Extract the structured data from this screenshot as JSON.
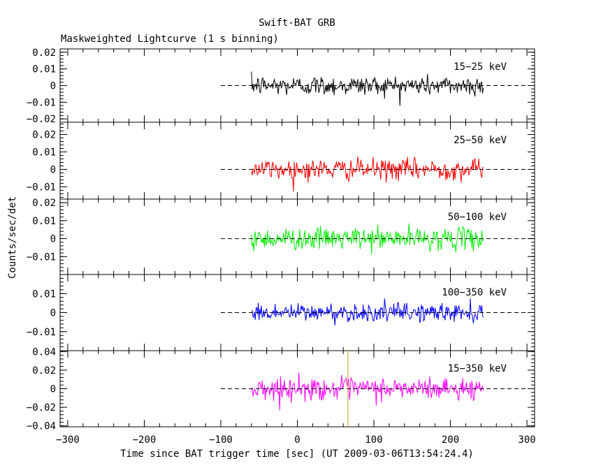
{
  "chart_data": {
    "type": "line",
    "title": "Swift-BAT GRB",
    "subtitle": "Maskweighted Lightcurve (1 s binning)",
    "xlabel": "Time since BAT trigger time [sec] (UT 2009-03-06T13:54:24.4)",
    "ylabel": "Counts/sec/det",
    "xlim": [
      -310,
      310
    ],
    "x_ticks": [
      -300,
      -200,
      -100,
      0,
      100,
      200,
      300
    ],
    "data_range": [
      -60,
      243
    ],
    "marker_line_x": 66,
    "marker_line_color": "#d4a020",
    "grid": false,
    "panels": [
      {
        "label": "15−25 keV",
        "color": "#000000",
        "ylim": [
          -0.022,
          0.022
        ],
        "yticks": [
          -0.02,
          -0.01,
          0,
          0.01,
          0.02
        ],
        "ytick_labels": [
          "−0.02",
          "−0.01",
          "0",
          "0.01",
          "0.02"
        ],
        "noise_sigma": 0.0055
      },
      {
        "label": "25−50 keV",
        "color": "#ff0000",
        "ylim": [
          -0.017,
          0.027
        ],
        "yticks": [
          -0.01,
          0,
          0.01,
          0.02
        ],
        "ytick_labels": [
          "−0.01",
          "0",
          "0.01",
          "0.02"
        ],
        "noise_sigma": 0.0055
      },
      {
        "label": "50−100 keV",
        "color": "#00ee00",
        "ylim": [
          -0.02,
          0.022
        ],
        "yticks": [
          -0.01,
          0,
          0.01,
          0.02
        ],
        "ytick_labels": [
          "−0.01",
          "0",
          "0.01",
          "0.02"
        ],
        "noise_sigma": 0.0055
      },
      {
        "label": "100−350 keV",
        "color": "#0000ff",
        "ylim": [
          -0.02,
          0.02
        ],
        "yticks": [
          -0.01,
          0,
          0.01
        ],
        "ytick_labels": [
          "−0.01",
          "0",
          "0.01"
        ],
        "noise_sigma": 0.0045
      },
      {
        "label": "15−350 keV",
        "color": "#ff00ff",
        "ylim": [
          -0.041,
          0.041
        ],
        "yticks": [
          -0.04,
          -0.02,
          0,
          0.02,
          0.04
        ],
        "ytick_labels": [
          "−0.04",
          "−0.02",
          "0",
          "0.02",
          "0.04"
        ],
        "noise_sigma": 0.011
      }
    ]
  }
}
